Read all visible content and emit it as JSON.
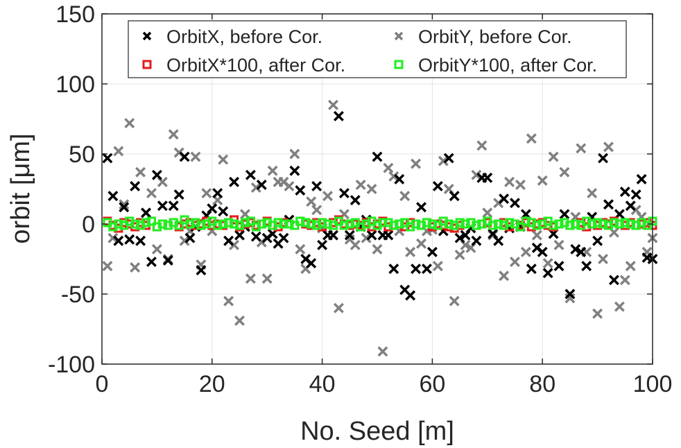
{
  "chart_data": {
    "type": "scatter",
    "xlabel": "No. Seed [m]",
    "ylabel": "orbit [μm]",
    "xlim": [
      0,
      100
    ],
    "ylim": [
      -100,
      150
    ],
    "xticks": [
      "0",
      "20",
      "40",
      "60",
      "80",
      "100"
    ],
    "yticks": [
      "-100",
      "-50",
      "0",
      "50",
      "100",
      "150"
    ],
    "grid": true,
    "legend_location": "top",
    "series": [
      {
        "name": "OrbitX, before Cor.",
        "marker": "x",
        "color": "#000000",
        "x": [
          1,
          2,
          3,
          4,
          5,
          6,
          7,
          8,
          9,
          10,
          11,
          12,
          13,
          14,
          15,
          16,
          17,
          18,
          19,
          20,
          21,
          22,
          23,
          24,
          25,
          26,
          27,
          28,
          29,
          30,
          31,
          32,
          33,
          34,
          35,
          36,
          37,
          38,
          39,
          40,
          41,
          42,
          43,
          44,
          45,
          46,
          47,
          48,
          49,
          50,
          51,
          52,
          53,
          54,
          55,
          56,
          57,
          58,
          59,
          60,
          61,
          62,
          63,
          64,
          65,
          66,
          67,
          68,
          69,
          70,
          71,
          72,
          73,
          74,
          75,
          76,
          77,
          78,
          79,
          80,
          81,
          82,
          83,
          84,
          85,
          86,
          87,
          88,
          89,
          90,
          91,
          92,
          93,
          94,
          95,
          96,
          97,
          98,
          99,
          100
        ],
        "values": [
          47,
          20,
          -12,
          12,
          -11,
          27,
          -12,
          8,
          -27,
          35,
          13,
          -26,
          13,
          21,
          48,
          -10,
          -2,
          -33,
          6,
          11,
          22,
          9,
          -12,
          30,
          -8,
          -2,
          35,
          -9,
          28,
          -10,
          -7,
          -14,
          -10,
          3,
          38,
          24,
          -25,
          -28,
          27,
          -15,
          -8,
          -8,
          77,
          22,
          -8,
          17,
          -2,
          3,
          -8,
          48,
          -8,
          -8,
          -32,
          32,
          -47,
          -51,
          -32,
          12,
          -32,
          -20,
          27,
          -5,
          47,
          20,
          -10,
          -8,
          -3,
          -12,
          33,
          33,
          -7,
          -12,
          18,
          -3,
          15,
          -2,
          7,
          -32,
          -17,
          -20,
          -35,
          -7,
          -30,
          7,
          -50,
          -18,
          -20,
          -30,
          5,
          -12,
          47,
          14,
          -40,
          7,
          23,
          13,
          21,
          32,
          -24,
          -25
        ]
      },
      {
        "name": "OrbitY, before Cor.",
        "marker": "x",
        "color": "#808080",
        "x": [
          1,
          2,
          3,
          4,
          5,
          6,
          7,
          8,
          9,
          10,
          11,
          12,
          13,
          14,
          15,
          16,
          17,
          18,
          19,
          20,
          21,
          22,
          23,
          24,
          25,
          26,
          27,
          28,
          29,
          30,
          31,
          32,
          33,
          34,
          35,
          36,
          37,
          38,
          39,
          40,
          41,
          42,
          43,
          44,
          45,
          46,
          47,
          48,
          49,
          50,
          51,
          52,
          53,
          54,
          55,
          56,
          57,
          58,
          59,
          60,
          61,
          62,
          63,
          64,
          65,
          66,
          67,
          68,
          69,
          70,
          71,
          72,
          73,
          74,
          75,
          76,
          77,
          78,
          79,
          80,
          81,
          82,
          83,
          84,
          85,
          86,
          87,
          88,
          89,
          90,
          91,
          92,
          93,
          94,
          95,
          96,
          97,
          98,
          99,
          100
        ],
        "values": [
          -30,
          -10,
          52,
          14,
          72,
          -31,
          37,
          8,
          22,
          -18,
          30,
          -25,
          64,
          51,
          -12,
          -5,
          48,
          -29,
          22,
          -5,
          17,
          46,
          -55,
          -15,
          -69,
          7,
          -39,
          26,
          -13,
          -39,
          38,
          30,
          30,
          27,
          50,
          -18,
          -32,
          16,
          10,
          -3,
          20,
          85,
          -60,
          7,
          -11,
          -15,
          28,
          -10,
          25,
          -18,
          -91,
          40,
          34,
          -5,
          20,
          -20,
          43,
          -14,
          -5,
          -4,
          -30,
          45,
          25,
          -55,
          -22,
          -15,
          -17,
          35,
          56,
          8,
          -8,
          15,
          -37,
          30,
          -27,
          28,
          -20,
          61,
          -8,
          31,
          -28,
          48,
          -15,
          37,
          -53,
          5,
          54,
          -20,
          22,
          -64,
          -25,
          55,
          -6,
          -59,
          -40,
          -30,
          10,
          5,
          -20,
          -10
        ]
      },
      {
        "name": "OrbitX*100, after Cor.",
        "marker": "square",
        "color": "#e31a1c",
        "x": [
          1,
          2,
          3,
          4,
          5,
          6,
          7,
          8,
          9,
          10,
          11,
          12,
          13,
          14,
          15,
          16,
          17,
          18,
          19,
          20,
          21,
          22,
          23,
          24,
          25,
          26,
          27,
          28,
          29,
          30,
          31,
          32,
          33,
          34,
          35,
          36,
          37,
          38,
          39,
          40,
          41,
          42,
          43,
          44,
          45,
          46,
          47,
          48,
          49,
          50,
          51,
          52,
          53,
          54,
          55,
          56,
          57,
          58,
          59,
          60,
          61,
          62,
          63,
          64,
          65,
          66,
          67,
          68,
          69,
          70,
          71,
          72,
          73,
          74,
          75,
          76,
          77,
          78,
          79,
          80,
          81,
          82,
          83,
          84,
          85,
          86,
          87,
          88,
          89,
          90,
          91,
          92,
          93,
          94,
          95,
          96,
          97,
          98,
          99,
          100
        ],
        "values": [
          2,
          -1,
          -3,
          1,
          0,
          -2,
          1,
          -1,
          2,
          -2,
          0,
          -1,
          1,
          -2,
          0,
          1,
          -1,
          0,
          2,
          -1,
          0,
          -1,
          1,
          3,
          -2,
          0,
          1,
          -1,
          0,
          2,
          -1,
          -2,
          1,
          0,
          -1,
          2,
          0,
          -1,
          1,
          -2,
          0,
          1,
          3,
          0,
          -1,
          0,
          -1,
          1,
          -2,
          0,
          2,
          -2,
          -1,
          0,
          -2,
          1,
          0,
          -1,
          1,
          -2,
          0,
          -1,
          -2,
          -3,
          -1,
          0,
          1,
          -1,
          0,
          1,
          -1,
          0,
          1,
          -2,
          0,
          -1,
          1,
          -2,
          0,
          1,
          -1,
          -2,
          0,
          1,
          -1,
          0,
          1,
          -2,
          0,
          -1,
          1,
          0,
          2,
          0,
          -1,
          1,
          -1,
          0,
          1,
          -1
        ]
      },
      {
        "name": "OrbitY*100, after Cor.",
        "marker": "square",
        "color": "#22ee22",
        "x": [
          1,
          2,
          3,
          4,
          5,
          6,
          7,
          8,
          9,
          10,
          11,
          12,
          13,
          14,
          15,
          16,
          17,
          18,
          19,
          20,
          21,
          22,
          23,
          24,
          25,
          26,
          27,
          28,
          29,
          30,
          31,
          32,
          33,
          34,
          35,
          36,
          37,
          38,
          39,
          40,
          41,
          42,
          43,
          44,
          45,
          46,
          47,
          48,
          49,
          50,
          51,
          52,
          53,
          54,
          55,
          56,
          57,
          58,
          59,
          60,
          61,
          62,
          63,
          64,
          65,
          66,
          67,
          68,
          69,
          70,
          71,
          72,
          73,
          74,
          75,
          76,
          77,
          78,
          79,
          80,
          81,
          82,
          83,
          84,
          85,
          86,
          87,
          88,
          89,
          90,
          91,
          92,
          93,
          94,
          95,
          96,
          97,
          98,
          99,
          100
        ],
        "values": [
          1,
          -2,
          0,
          -1,
          2,
          0,
          -1,
          1,
          2,
          -2,
          0,
          -1,
          1,
          -1,
          3,
          0,
          1,
          -1,
          0,
          2,
          -1,
          0,
          1,
          0,
          -1,
          1,
          2,
          -2,
          0,
          1,
          -1,
          1,
          0,
          0,
          -1,
          2,
          1,
          0,
          -1,
          1,
          0,
          -1,
          2,
          -1,
          0,
          1,
          -2,
          0,
          2,
          -1,
          1,
          1,
          -1,
          0,
          1,
          -2,
          0,
          -1,
          1,
          0,
          -1,
          2,
          0,
          -1,
          1,
          0,
          1,
          -1,
          0,
          2,
          -1,
          0,
          -1,
          1,
          0,
          -2,
          2,
          1,
          -1,
          0,
          2,
          -1,
          0,
          1,
          -1,
          0,
          -1,
          2,
          0,
          1,
          0,
          -1,
          1,
          0,
          1,
          0,
          -1,
          1,
          -1,
          2
        ]
      }
    ]
  }
}
